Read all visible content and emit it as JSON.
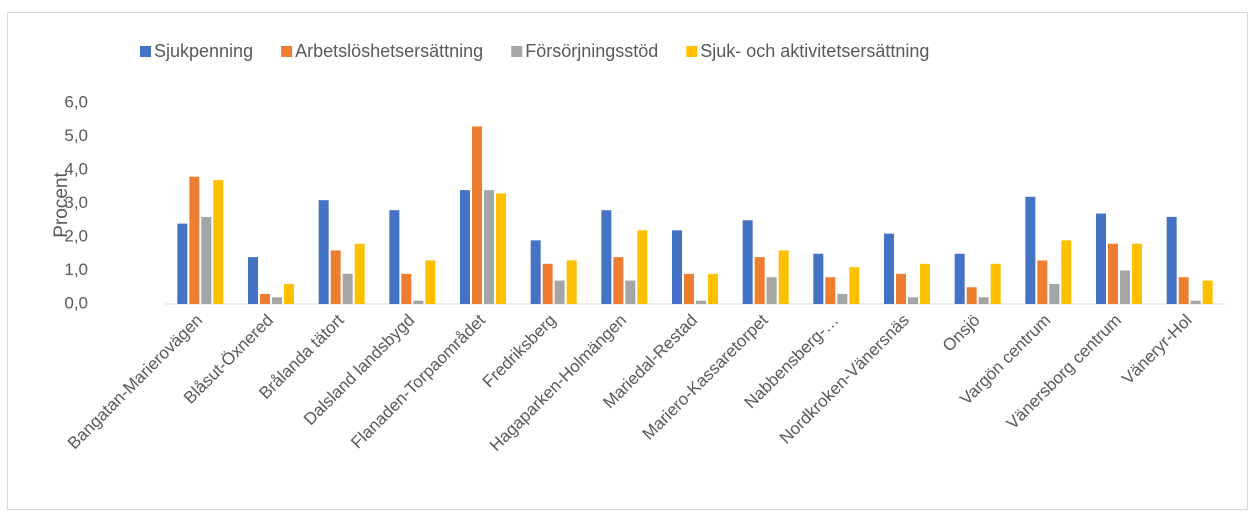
{
  "chart_data": {
    "type": "bar",
    "y_label": "Procent",
    "categories": [
      "Bangatan-Marierovägen",
      "Blåsut-Öxnered",
      "Brålanda tätort",
      "Dalsland landsbygd",
      "Flanaden-Torpaområdet",
      "Fredriksberg",
      "Hagaparken-Holmängen",
      "Mariedal-Restad",
      "Mariero-Kassaretorpet",
      "Nabbensberg-…",
      "Nordkroken-Vänersnäs",
      "Onsjö",
      "Vargön centrum",
      "Vänersborg centrum",
      "Väneryr-Hol"
    ],
    "series": [
      {
        "name": "Sjukpenning",
        "color": "#4472c4",
        "values": [
          2.4,
          1.4,
          3.1,
          2.8,
          3.4,
          1.9,
          2.8,
          2.2,
          2.5,
          1.5,
          2.1,
          1.5,
          3.2,
          2.7,
          2.6
        ]
      },
      {
        "name": "Arbetslöshetsersättning",
        "color": "#ed7d31",
        "values": [
          3.8,
          0.3,
          1.6,
          0.9,
          5.3,
          1.2,
          1.4,
          0.9,
          1.4,
          0.8,
          0.9,
          0.5,
          1.3,
          1.8,
          0.8
        ]
      },
      {
        "name": "Försörjningsstöd",
        "color": "#a5a5a5",
        "values": [
          2.6,
          0.2,
          0.9,
          0.1,
          3.4,
          0.7,
          0.7,
          0.1,
          0.8,
          0.3,
          0.2,
          0.2,
          0.6,
          1.0,
          0.1
        ]
      },
      {
        "name": "Sjuk- och aktivitetsersättning",
        "color": "#ffc000",
        "values": [
          3.7,
          0.6,
          1.8,
          1.3,
          3.3,
          1.3,
          2.2,
          0.9,
          1.6,
          1.1,
          1.2,
          1.2,
          1.9,
          1.8,
          0.7
        ]
      }
    ],
    "ylim": [
      0,
      6
    ],
    "yticks": [
      {
        "value": 0,
        "label": "0,0"
      },
      {
        "value": 1,
        "label": "1,0"
      },
      {
        "value": 2,
        "label": "2,0"
      },
      {
        "value": 3,
        "label": "3,0"
      },
      {
        "value": 4,
        "label": "4,0"
      },
      {
        "value": 5,
        "label": "5,0"
      },
      {
        "value": 6,
        "label": "6,0"
      }
    ],
    "grid": false,
    "legend": "top"
  }
}
